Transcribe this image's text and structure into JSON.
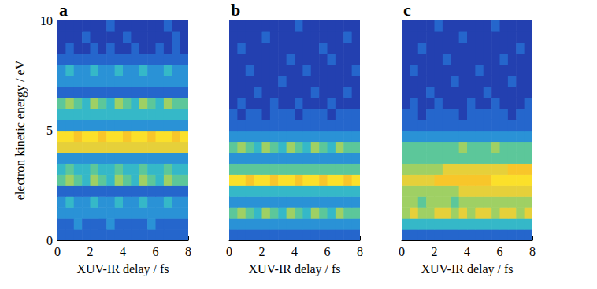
{
  "chart_data": [
    {
      "type": "heatmap",
      "title": "a",
      "xlabel": "XUV-IR delay / fs",
      "ylabel": "electron kinetic energy / eV",
      "x": [
        0.25,
        0.75,
        1.25,
        1.75,
        2.25,
        2.75,
        3.25,
        3.75,
        4.25,
        4.75,
        5.25,
        5.75,
        6.25,
        6.75,
        7.25,
        7.75
      ],
      "y": [
        0.25,
        0.75,
        1.25,
        1.75,
        2.25,
        2.75,
        3.25,
        3.75,
        4.25,
        4.75,
        5.25,
        5.75,
        6.25,
        6.75,
        7.25,
        7.75,
        8.25,
        8.75,
        9.25,
        9.75
      ],
      "z": [
        [
          2,
          2,
          2,
          2,
          2,
          2,
          2,
          2,
          2,
          2,
          2,
          2,
          2,
          2,
          2,
          2
        ],
        [
          2,
          2,
          3,
          2,
          2,
          2,
          3,
          2,
          2,
          2,
          2,
          3,
          2,
          2,
          2,
          2
        ],
        [
          3,
          3,
          3,
          3,
          3,
          3,
          3,
          3,
          3,
          3,
          3,
          3,
          3,
          3,
          3,
          3
        ],
        [
          3,
          4,
          3,
          3,
          4,
          3,
          3,
          4,
          3,
          3,
          4,
          3,
          3,
          4,
          3,
          3
        ],
        [
          2,
          2,
          2,
          2,
          2,
          2,
          2,
          2,
          2,
          2,
          2,
          2,
          2,
          2,
          2,
          2
        ],
        [
          5,
          6,
          5,
          4,
          6,
          5,
          4,
          6,
          5,
          4,
          6,
          5,
          4,
          6,
          5,
          5
        ],
        [
          4,
          5,
          4,
          4,
          5,
          4,
          4,
          5,
          4,
          4,
          5,
          4,
          4,
          5,
          4,
          4
        ],
        [
          3,
          3,
          3,
          3,
          3,
          3,
          3,
          3,
          3,
          3,
          3,
          3,
          3,
          3,
          3,
          3
        ],
        [
          7,
          7,
          7,
          7,
          7,
          7,
          7,
          7,
          7,
          7,
          7,
          7,
          7,
          7,
          7,
          7
        ],
        [
          9,
          9,
          8,
          9,
          9,
          8,
          9,
          9,
          8,
          9,
          9,
          8,
          9,
          9,
          8,
          9
        ],
        [
          3,
          3,
          3,
          3,
          3,
          3,
          3,
          3,
          3,
          3,
          3,
          3,
          3,
          3,
          3,
          3
        ],
        [
          4,
          4,
          4,
          4,
          4,
          4,
          4,
          4,
          4,
          4,
          4,
          4,
          4,
          4,
          4,
          4
        ],
        [
          5,
          6,
          5,
          4,
          6,
          5,
          4,
          6,
          5,
          4,
          6,
          5,
          4,
          6,
          5,
          5
        ],
        [
          2,
          2,
          2,
          2,
          2,
          2,
          2,
          2,
          2,
          2,
          2,
          2,
          2,
          2,
          2,
          2
        ],
        [
          3,
          3,
          3,
          3,
          3,
          3,
          3,
          3,
          3,
          3,
          3,
          3,
          3,
          3,
          3,
          3
        ],
        [
          3,
          4,
          3,
          3,
          4,
          3,
          3,
          4,
          3,
          3,
          4,
          3,
          3,
          4,
          3,
          3
        ],
        [
          2,
          2,
          2,
          2,
          2,
          2,
          2,
          2,
          2,
          2,
          2,
          2,
          2,
          2,
          2,
          2
        ],
        [
          1,
          2,
          1,
          1,
          2,
          1,
          2,
          1,
          1,
          2,
          1,
          1,
          2,
          1,
          2,
          1
        ],
        [
          1,
          1,
          1,
          2,
          1,
          1,
          1,
          1,
          2,
          1,
          1,
          1,
          1,
          1,
          2,
          1
        ],
        [
          1,
          1,
          1,
          1,
          1,
          1,
          2,
          1,
          1,
          1,
          1,
          1,
          1,
          2,
          1,
          1
        ]
      ],
      "zlim": [
        0,
        9
      ],
      "xlim": [
        0,
        8
      ],
      "ylim": [
        0,
        10
      ],
      "xticks": [
        0,
        2,
        4,
        6,
        8
      ],
      "yticks": [
        0,
        5,
        10
      ],
      "grid": false
    },
    {
      "type": "heatmap",
      "title": "b",
      "xlabel": "XUV-IR delay / fs",
      "x": [
        0.25,
        0.75,
        1.25,
        1.75,
        2.25,
        2.75,
        3.25,
        3.75,
        4.25,
        4.75,
        5.25,
        5.75,
        6.25,
        6.75,
        7.25,
        7.75
      ],
      "y": [
        0.25,
        0.75,
        1.25,
        1.75,
        2.25,
        2.75,
        3.25,
        3.75,
        4.25,
        4.75,
        5.25,
        5.75,
        6.25,
        6.75,
        7.25,
        7.75,
        8.25,
        8.75,
        9.25,
        9.75
      ],
      "z": [
        [
          2,
          2,
          2,
          2,
          2,
          2,
          2,
          2,
          2,
          2,
          2,
          2,
          2,
          2,
          2,
          2
        ],
        [
          3,
          3,
          3,
          3,
          3,
          3,
          3,
          3,
          3,
          3,
          3,
          3,
          3,
          3,
          3,
          3
        ],
        [
          5,
          6,
          5,
          4,
          6,
          5,
          4,
          6,
          5,
          4,
          6,
          5,
          4,
          6,
          5,
          5
        ],
        [
          3,
          3,
          3,
          3,
          3,
          3,
          3,
          3,
          3,
          3,
          3,
          3,
          3,
          3,
          3,
          3
        ],
        [
          4,
          4,
          4,
          4,
          4,
          4,
          4,
          4,
          4,
          4,
          4,
          4,
          4,
          4,
          4,
          4
        ],
        [
          9,
          9,
          8,
          9,
          9,
          8,
          9,
          9,
          8,
          9,
          9,
          8,
          9,
          9,
          8,
          9
        ],
        [
          5,
          5,
          5,
          5,
          5,
          5,
          5,
          5,
          5,
          5,
          5,
          5,
          5,
          5,
          5,
          5
        ],
        [
          3,
          3,
          3,
          3,
          3,
          3,
          3,
          3,
          3,
          3,
          3,
          3,
          3,
          3,
          3,
          3
        ],
        [
          5,
          6,
          5,
          4,
          6,
          5,
          4,
          6,
          5,
          4,
          6,
          5,
          4,
          6,
          5,
          5
        ],
        [
          3,
          3,
          3,
          3,
          3,
          3,
          3,
          3,
          3,
          3,
          3,
          3,
          3,
          3,
          3,
          3
        ],
        [
          2,
          2,
          2,
          2,
          2,
          2,
          2,
          2,
          2,
          2,
          2,
          2,
          2,
          2,
          2,
          2
        ],
        [
          2,
          1,
          2,
          2,
          1,
          2,
          2,
          2,
          1,
          2,
          2,
          2,
          1,
          2,
          2,
          2
        ],
        [
          1,
          2,
          1,
          1,
          1,
          2,
          1,
          1,
          2,
          1,
          1,
          1,
          2,
          1,
          1,
          1
        ],
        [
          1,
          1,
          1,
          2,
          1,
          1,
          1,
          1,
          1,
          1,
          2,
          1,
          1,
          1,
          2,
          1
        ],
        [
          1,
          1,
          1,
          1,
          1,
          1,
          2,
          1,
          1,
          1,
          1,
          1,
          1,
          1,
          1,
          1
        ],
        [
          1,
          1,
          2,
          1,
          1,
          1,
          1,
          1,
          1,
          2,
          1,
          1,
          1,
          1,
          1,
          2
        ],
        [
          1,
          1,
          1,
          1,
          1,
          1,
          1,
          2,
          1,
          1,
          1,
          1,
          2,
          1,
          1,
          1
        ],
        [
          1,
          2,
          1,
          1,
          1,
          1,
          1,
          1,
          1,
          1,
          1,
          2,
          1,
          1,
          1,
          1
        ],
        [
          1,
          1,
          1,
          1,
          2,
          1,
          1,
          1,
          1,
          1,
          1,
          1,
          1,
          1,
          2,
          1
        ],
        [
          1,
          1,
          1,
          1,
          1,
          1,
          1,
          1,
          2,
          1,
          1,
          1,
          1,
          1,
          1,
          1
        ]
      ],
      "zlim": [
        0,
        9
      ],
      "xlim": [
        0,
        8
      ],
      "ylim": [
        0,
        10
      ],
      "xticks": [
        0,
        2,
        4,
        6,
        8
      ],
      "yticks": [
        0,
        5,
        10
      ],
      "grid": false,
      "tick_labels": "x"
    },
    {
      "type": "heatmap",
      "title": "c",
      "xlabel": "XUV-IR delay / fs",
      "x": [
        0.25,
        0.75,
        1.25,
        1.75,
        2.25,
        2.75,
        3.25,
        3.75,
        4.25,
        4.75,
        5.25,
        5.75,
        6.25,
        6.75,
        7.25,
        7.75
      ],
      "y": [
        0.25,
        0.75,
        1.25,
        1.75,
        2.25,
        2.75,
        3.25,
        3.75,
        4.25,
        4.75,
        5.25,
        5.75,
        6.25,
        6.75,
        7.25,
        7.75,
        8.25,
        8.75,
        9.25,
        9.75
      ],
      "z": [
        [
          2,
          2,
          2,
          2,
          2,
          2,
          2,
          2,
          2,
          2,
          2,
          2,
          2,
          2,
          2,
          2
        ],
        [
          4,
          4,
          4,
          4,
          4,
          4,
          4,
          4,
          4,
          4,
          4,
          4,
          4,
          4,
          4,
          4
        ],
        [
          6,
          7,
          6,
          6,
          7,
          7,
          6,
          7,
          6,
          7,
          7,
          6,
          7,
          7,
          6,
          7
        ],
        [
          6,
          6,
          5,
          6,
          6,
          6,
          5,
          6,
          6,
          6,
          6,
          6,
          6,
          6,
          6,
          6
        ],
        [
          6,
          6,
          6,
          6,
          6,
          6,
          6,
          7,
          7,
          7,
          7,
          7,
          7,
          7,
          7,
          7
        ],
        [
          7,
          7,
          7,
          7,
          8,
          8,
          8,
          8,
          8,
          8,
          8,
          9,
          9,
          9,
          9,
          9
        ],
        [
          6,
          6,
          6,
          6,
          6,
          7,
          7,
          7,
          7,
          7,
          7,
          7,
          7,
          8,
          8,
          8
        ],
        [
          5,
          5,
          5,
          5,
          5,
          5,
          5,
          5,
          5,
          5,
          5,
          5,
          5,
          5,
          5,
          5
        ],
        [
          5,
          5,
          5,
          5,
          5,
          5,
          5,
          6,
          5,
          5,
          5,
          6,
          5,
          5,
          5,
          5
        ],
        [
          3,
          3,
          3,
          3,
          3,
          3,
          3,
          3,
          3,
          3,
          3,
          3,
          3,
          3,
          3,
          3
        ],
        [
          2,
          2,
          2,
          2,
          2,
          2,
          2,
          2,
          2,
          2,
          2,
          2,
          2,
          2,
          2,
          2
        ],
        [
          2,
          2,
          1,
          2,
          2,
          2,
          2,
          1,
          2,
          2,
          2,
          2,
          2,
          1,
          2,
          2
        ],
        [
          1,
          2,
          1,
          1,
          2,
          1,
          1,
          1,
          2,
          1,
          1,
          2,
          1,
          1,
          1,
          2
        ],
        [
          1,
          1,
          1,
          2,
          1,
          1,
          1,
          1,
          1,
          1,
          2,
          1,
          1,
          1,
          1,
          1
        ],
        [
          1,
          1,
          1,
          1,
          1,
          1,
          2,
          1,
          1,
          1,
          1,
          1,
          1,
          2,
          1,
          1
        ],
        [
          1,
          2,
          1,
          1,
          1,
          1,
          1,
          1,
          1,
          2,
          1,
          1,
          1,
          1,
          1,
          1
        ],
        [
          1,
          1,
          1,
          1,
          1,
          2,
          1,
          1,
          1,
          1,
          1,
          1,
          2,
          1,
          1,
          1
        ],
        [
          1,
          1,
          2,
          1,
          1,
          1,
          1,
          1,
          1,
          1,
          1,
          1,
          1,
          1,
          2,
          1
        ],
        [
          1,
          1,
          1,
          1,
          1,
          1,
          1,
          2,
          1,
          1,
          1,
          1,
          1,
          1,
          1,
          1
        ],
        [
          1,
          1,
          1,
          1,
          2,
          1,
          1,
          1,
          1,
          1,
          1,
          2,
          1,
          1,
          1,
          1
        ]
      ],
      "zlim": [
        0,
        9
      ],
      "xlim": [
        0,
        8
      ],
      "ylim": [
        0,
        10
      ],
      "xticks": [
        0,
        2,
        4,
        6,
        8
      ],
      "yticks": [
        0,
        5,
        10
      ],
      "grid": false,
      "tick_labels": "x"
    }
  ]
}
